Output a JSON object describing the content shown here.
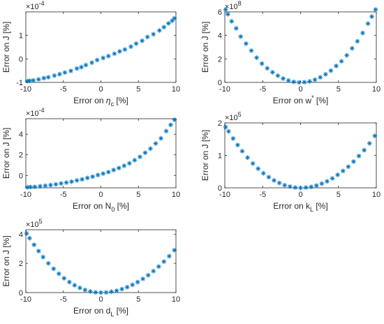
{
  "marker_color": "#0072BD",
  "axes_color": "#262626",
  "chart_data": [
    {
      "type": "scatter",
      "marker": "asterisk",
      "xlabel": "Error on η_c [%]",
      "xlabel_parts": {
        "main": "Error on ",
        "symbol": "η",
        "sub": "c",
        "tail": " [%]"
      },
      "ylabel": "Error on J [%]",
      "xlim": [
        -10,
        10
      ],
      "ylim": [
        -1,
        2
      ],
      "exponent_label": "×10",
      "exponent": "-4",
      "xticks": [
        -10,
        -5,
        0,
        5,
        10
      ],
      "yticks": [
        -1,
        0,
        1
      ],
      "y_scale": 0.0001,
      "curve": "1.0*(x/10) + 0.8*(x/10)^2, in units of 1e-4",
      "points": [
        [
          -9.8,
          -0.95
        ],
        [
          -9.5,
          -0.93
        ],
        [
          -9.0,
          -0.91
        ],
        [
          -8.3,
          -0.87
        ],
        [
          -7.6,
          -0.82
        ],
        [
          -7.0,
          -0.78
        ],
        [
          -6.2,
          -0.71
        ],
        [
          -5.5,
          -0.65
        ],
        [
          -4.8,
          -0.58
        ],
        [
          -4.0,
          -0.51
        ],
        [
          -3.2,
          -0.41
        ],
        [
          -2.6,
          -0.35
        ],
        [
          -2.0,
          -0.26
        ],
        [
          -1.2,
          -0.16
        ],
        [
          -0.5,
          -0.05
        ],
        [
          0.3,
          0.04
        ],
        [
          1.0,
          0.12
        ],
        [
          1.8,
          0.22
        ],
        [
          2.5,
          0.32
        ],
        [
          3.2,
          0.4
        ],
        [
          4.0,
          0.52
        ],
        [
          4.7,
          0.65
        ],
        [
          5.5,
          0.77
        ],
        [
          6.2,
          0.93
        ],
        [
          7.0,
          1.05
        ],
        [
          7.8,
          1.21
        ],
        [
          8.4,
          1.35
        ],
        [
          9.0,
          1.51
        ],
        [
          9.5,
          1.62
        ],
        [
          9.8,
          1.73
        ]
      ]
    },
    {
      "type": "scatter",
      "marker": "asterisk",
      "xlabel": "Error on w* [%]",
      "xlabel_parts": {
        "main": "Error on w",
        "sup": "*",
        "tail": " [%]"
      },
      "ylabel": "Error on J [%]",
      "xlim": [
        -10,
        10
      ],
      "ylim": [
        0,
        6
      ],
      "exponent_label": "×10",
      "exponent": "8",
      "xticks": [
        -10,
        -5,
        0,
        5,
        10
      ],
      "yticks": [
        0,
        2,
        4,
        6
      ],
      "y_scale": 100000000,
      "curve": "6.3*(x/10)^2, in units of 1e8",
      "points": [
        [
          -9.9,
          6.2
        ],
        [
          -9.6,
          5.8
        ],
        [
          -9.1,
          5.2
        ],
        [
          -8.5,
          4.6
        ],
        [
          -7.9,
          3.9
        ],
        [
          -7.2,
          3.3
        ],
        [
          -6.5,
          2.7
        ],
        [
          -5.8,
          2.1
        ],
        [
          -5.1,
          1.6
        ],
        [
          -4.4,
          1.2
        ],
        [
          -3.7,
          0.86
        ],
        [
          -3.0,
          0.57
        ],
        [
          -2.3,
          0.33
        ],
        [
          -1.6,
          0.16
        ],
        [
          -0.9,
          0.05
        ],
        [
          -0.2,
          0.0
        ],
        [
          0.5,
          0.02
        ],
        [
          1.2,
          0.09
        ],
        [
          1.9,
          0.23
        ],
        [
          2.6,
          0.43
        ],
        [
          3.3,
          0.69
        ],
        [
          4.0,
          1.0
        ],
        [
          4.7,
          1.4
        ],
        [
          5.4,
          1.8
        ],
        [
          6.1,
          2.3
        ],
        [
          6.8,
          2.9
        ],
        [
          7.5,
          3.5
        ],
        [
          8.2,
          4.2
        ],
        [
          8.9,
          5.0
        ],
        [
          9.4,
          5.6
        ],
        [
          9.9,
          6.2
        ]
      ]
    },
    {
      "type": "scatter",
      "marker": "asterisk",
      "xlabel": "Error on N_0 [%]",
      "xlabel_parts": {
        "main": "Error on N",
        "sub": "0",
        "tail": " [%]"
      },
      "ylabel": "Error on J [%]",
      "xlim": [
        -10,
        10
      ],
      "ylim": [
        -1.2,
        5.5
      ],
      "exponent_label": "×10",
      "exponent": "-4",
      "xticks": [
        -10,
        -5,
        0,
        5,
        10
      ],
      "yticks": [
        0,
        2,
        4
      ],
      "y_scale": 0.0001,
      "curve": "≈ -1.2 at x=-10 rising convexly to 5.5 at x=10, in units of 1e-4",
      "points": [
        [
          -9.8,
          -1.15
        ],
        [
          -9.4,
          -1.12
        ],
        [
          -8.8,
          -1.1
        ],
        [
          -8.1,
          -1.05
        ],
        [
          -7.4,
          -1.0
        ],
        [
          -6.7,
          -0.93
        ],
        [
          -6.0,
          -0.86
        ],
        [
          -5.3,
          -0.78
        ],
        [
          -4.6,
          -0.69
        ],
        [
          -3.9,
          -0.6
        ],
        [
          -3.2,
          -0.48
        ],
        [
          -2.5,
          -0.38
        ],
        [
          -1.8,
          -0.24
        ],
        [
          -1.1,
          -0.12
        ],
        [
          -0.4,
          0.04
        ],
        [
          0.3,
          0.18
        ],
        [
          1.0,
          0.33
        ],
        [
          1.7,
          0.53
        ],
        [
          2.4,
          0.72
        ],
        [
          3.1,
          0.94
        ],
        [
          3.8,
          1.18
        ],
        [
          4.5,
          1.48
        ],
        [
          5.2,
          1.8
        ],
        [
          5.9,
          2.2
        ],
        [
          6.6,
          2.6
        ],
        [
          7.3,
          3.1
        ],
        [
          8.0,
          3.6
        ],
        [
          8.7,
          4.3
        ],
        [
          9.3,
          4.9
        ],
        [
          9.8,
          5.4
        ]
      ]
    },
    {
      "type": "scatter",
      "marker": "asterisk",
      "xlabel": "Error on k_L [%]",
      "xlabel_parts": {
        "main": "Error on k",
        "sub": "L",
        "tail": " [%]"
      },
      "ylabel": "Error on J [%]",
      "xlim": [
        -10,
        10
      ],
      "ylim": [
        0,
        2
      ],
      "exponent_label": "×10",
      "exponent": "5",
      "xticks": [
        -10,
        -5,
        0,
        5,
        10
      ],
      "yticks": [
        0,
        1,
        2
      ],
      "y_scale": 100000,
      "curve": "≈ 1.9 at x=-10, 0 at x=0, 1.65 at x=10, in units of 1e5",
      "points": [
        [
          -9.9,
          1.87
        ],
        [
          -9.5,
          1.74
        ],
        [
          -8.9,
          1.52
        ],
        [
          -8.3,
          1.32
        ],
        [
          -7.7,
          1.13
        ],
        [
          -7.0,
          0.93
        ],
        [
          -6.3,
          0.75
        ],
        [
          -5.6,
          0.59
        ],
        [
          -4.9,
          0.45
        ],
        [
          -4.2,
          0.33
        ],
        [
          -3.5,
          0.23
        ],
        [
          -2.8,
          0.15
        ],
        [
          -2.1,
          0.08
        ],
        [
          -1.4,
          0.04
        ],
        [
          -0.7,
          0.01
        ],
        [
          0.0,
          0.0
        ],
        [
          0.7,
          0.01
        ],
        [
          1.4,
          0.03
        ],
        [
          2.1,
          0.07
        ],
        [
          2.8,
          0.13
        ],
        [
          3.5,
          0.2
        ],
        [
          4.2,
          0.29
        ],
        [
          4.9,
          0.4
        ],
        [
          5.6,
          0.52
        ],
        [
          6.3,
          0.65
        ],
        [
          7.0,
          0.81
        ],
        [
          7.7,
          0.98
        ],
        [
          8.4,
          1.16
        ],
        [
          9.1,
          1.37
        ],
        [
          9.8,
          1.6
        ]
      ]
    },
    {
      "type": "scatter",
      "marker": "asterisk",
      "xlabel": "Error on d_L [%]",
      "xlabel_parts": {
        "main": "Error on d",
        "sub": "L",
        "tail": " [%]"
      },
      "ylabel": "Error on J [%]",
      "xlim": [
        -10,
        10
      ],
      "ylim": [
        0,
        4.3
      ],
      "exponent_label": "×10",
      "exponent": "5",
      "xticks": [
        -10,
        -5,
        0,
        5,
        10
      ],
      "yticks": [
        0,
        2,
        4
      ],
      "y_scale": 100000,
      "curve": "≈ 4.1 at x=-10, 0 at x=0, 3.0 at x=10, in units of 1e5",
      "points": [
        [
          -9.9,
          4.05
        ],
        [
          -9.5,
          3.72
        ],
        [
          -8.9,
          3.27
        ],
        [
          -8.3,
          2.84
        ],
        [
          -7.7,
          2.43
        ],
        [
          -7.0,
          2.0
        ],
        [
          -6.3,
          1.63
        ],
        [
          -5.6,
          1.29
        ],
        [
          -4.9,
          0.98
        ],
        [
          -4.2,
          0.72
        ],
        [
          -3.5,
          0.5
        ],
        [
          -2.8,
          0.32
        ],
        [
          -2.1,
          0.18
        ],
        [
          -1.4,
          0.08
        ],
        [
          -0.7,
          0.02
        ],
        [
          0.0,
          0.0
        ],
        [
          0.7,
          0.01
        ],
        [
          1.4,
          0.06
        ],
        [
          2.1,
          0.13
        ],
        [
          2.8,
          0.24
        ],
        [
          3.5,
          0.37
        ],
        [
          4.2,
          0.53
        ],
        [
          4.9,
          0.72
        ],
        [
          5.6,
          0.94
        ],
        [
          6.3,
          1.19
        ],
        [
          7.0,
          1.47
        ],
        [
          7.7,
          1.78
        ],
        [
          8.4,
          2.12
        ],
        [
          9.1,
          2.49
        ],
        [
          9.8,
          2.9
        ]
      ]
    }
  ]
}
